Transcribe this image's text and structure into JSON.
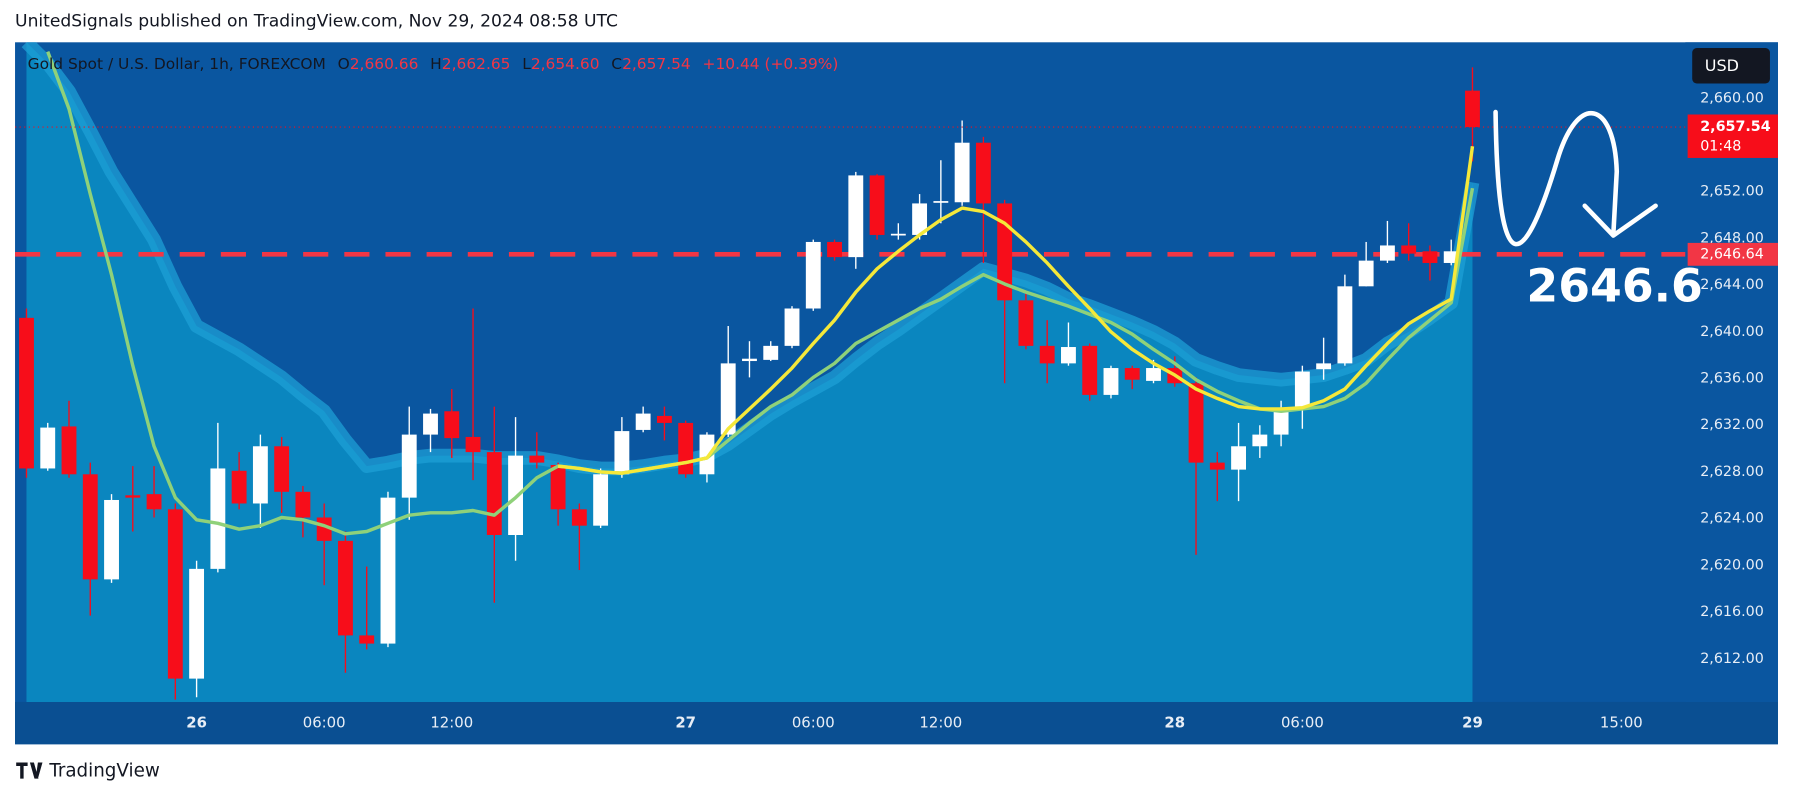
{
  "header": "UnitedSignals published on TradingView.com, Nov 29, 2024 08:58 UTC",
  "footer": "TradingView",
  "chart_data": {
    "type": "candlestick",
    "legend": {
      "symbol": "Gold Spot / U.S. Dollar, 1h, FOREXCOM",
      "o": "O",
      "open": "2,660.66",
      "h": "H",
      "high": "2,662.65",
      "l": "L",
      "low": "2,654.60",
      "c": "C",
      "close": "2,657.54",
      "change": "+10.44 (+0.39%)"
    },
    "currency": "USD",
    "categories": [
      null,
      null,
      null,
      null,
      null,
      null,
      null,
      null,
      "26",
      null,
      null,
      null,
      null,
      null,
      "06:00",
      null,
      null,
      null,
      null,
      null,
      "12:00",
      null,
      null,
      null,
      null,
      null,
      null,
      null,
      null,
      null,
      null,
      "27",
      null,
      null,
      null,
      null,
      null,
      "06:00",
      null,
      null,
      null,
      null,
      null,
      "12:00",
      null,
      null,
      null,
      null,
      null,
      null,
      null,
      null,
      null,
      null,
      "28",
      null,
      null,
      null,
      null,
      null,
      "06:00",
      null,
      null,
      null,
      null,
      null,
      null,
      null,
      "29",
      null,
      null,
      null,
      null,
      null,
      null,
      "15:00",
      null,
      null,
      null
    ],
    "open": [
      2641.2,
      2628.3,
      2631.9,
      2627.8,
      2618.8,
      2626.0,
      2626.1,
      2624.8,
      2610.3,
      2619.7,
      2628.1,
      2625.3,
      2630.2,
      2626.3,
      2624.1,
      2622.1,
      2614.0,
      2613.3,
      2625.8,
      2631.2,
      2633.2,
      2631.0,
      2629.7,
      2622.6,
      2629.4,
      2628.6,
      2624.8,
      2623.4,
      2627.8,
      2631.6,
      2632.8,
      2632.2,
      2627.8,
      2631.2,
      2637.5,
      2637.6,
      2638.8,
      2642.0,
      2647.7,
      2646.4,
      2653.4,
      2648.3,
      2648.3,
      2651.1,
      2651.1,
      2656.2,
      2651.0,
      2642.7,
      2638.8,
      2637.3,
      2638.8,
      2634.6,
      2636.9,
      2635.8,
      2636.9,
      2635.6,
      2628.8,
      2628.2,
      2630.2,
      2631.2,
      2633.5,
      2636.8,
      2637.3,
      2643.9,
      2646.1,
      2647.4,
      2646.9,
      2645.9,
      2660.66,
      null,
      null,
      null,
      null,
      null,
      null,
      null,
      null,
      null,
      null
    ],
    "high": [
      2642.0,
      2632.2,
      2634.1,
      2628.8,
      2626.1,
      2628.5,
      2628.5,
      2625.3,
      2620.4,
      2632.2,
      2629.7,
      2631.2,
      2631.0,
      2626.8,
      2625.3,
      2622.9,
      2619.9,
      2626.3,
      2633.6,
      2633.4,
      2635.1,
      2642.0,
      2633.6,
      2632.7,
      2631.4,
      2628.8,
      2625.3,
      2628.3,
      2632.7,
      2633.6,
      2633.6,
      2632.4,
      2631.4,
      2640.5,
      2639.2,
      2639.2,
      2642.2,
      2647.9,
      2647.9,
      2653.7,
      2653.5,
      2649.3,
      2651.8,
      2654.7,
      2658.1,
      2656.7,
      2651.3,
      2643.4,
      2641.0,
      2640.8,
      2639.0,
      2637.1,
      2637.1,
      2637.6,
      2637.9,
      2636.1,
      2629.7,
      2632.2,
      2632.0,
      2634.1,
      2637.1,
      2639.5,
      2644.9,
      2647.7,
      2649.5,
      2649.3,
      2647.4,
      2647.9,
      2662.65,
      null,
      null,
      null,
      null,
      null,
      null,
      null,
      null,
      null,
      null
    ],
    "low": [
      2627.5,
      2628.1,
      2627.5,
      2615.7,
      2618.5,
      2622.9,
      2624.1,
      2608.5,
      2608.7,
      2619.4,
      2624.8,
      2623.2,
      2624.5,
      2622.4,
      2618.3,
      2610.8,
      2612.8,
      2613.0,
      2623.9,
      2629.7,
      2629.2,
      2627.3,
      2616.8,
      2620.4,
      2628.3,
      2623.4,
      2619.6,
      2623.2,
      2627.5,
      2631.4,
      2630.7,
      2627.5,
      2627.1,
      2631.0,
      2636.1,
      2637.5,
      2638.6,
      2641.8,
      2646.1,
      2645.4,
      2647.9,
      2647.9,
      2647.9,
      2649.3,
      2650.8,
      2645.9,
      2635.6,
      2638.5,
      2635.6,
      2637.1,
      2634.1,
      2634.3,
      2635.1,
      2635.6,
      2635.3,
      2620.9,
      2625.5,
      2625.5,
      2629.2,
      2630.2,
      2631.7,
      2635.9,
      2637.1,
      2643.9,
      2645.9,
      2646.1,
      2644.4,
      2645.7,
      2654.6,
      null,
      null,
      null,
      null,
      null,
      null,
      null,
      null,
      null,
      null
    ],
    "close": [
      2628.3,
      2631.8,
      2627.8,
      2618.8,
      2625.6,
      2625.8,
      2624.8,
      2610.3,
      2619.7,
      2628.3,
      2625.3,
      2630.2,
      2626.3,
      2624.1,
      2622.1,
      2614.0,
      2613.3,
      2625.8,
      2631.2,
      2633.0,
      2630.9,
      2629.7,
      2622.6,
      2629.4,
      2628.8,
      2624.8,
      2623.4,
      2627.8,
      2631.5,
      2633.0,
      2632.2,
      2627.8,
      2631.2,
      2637.3,
      2637.7,
      2638.8,
      2642.0,
      2647.7,
      2646.4,
      2653.4,
      2648.3,
      2648.4,
      2651.0,
      2651.2,
      2656.2,
      2651.0,
      2642.7,
      2638.8,
      2637.3,
      2638.7,
      2634.6,
      2636.9,
      2635.9,
      2636.9,
      2635.6,
      2628.8,
      2628.2,
      2630.2,
      2631.2,
      2633.5,
      2636.6,
      2637.3,
      2643.9,
      2646.1,
      2647.4,
      2646.7,
      2645.9,
      2646.9,
      2657.54,
      null,
      null,
      null,
      null,
      null,
      null,
      null,
      null,
      null,
      null
    ],
    "up_color": "#ffffff",
    "down_color": "#f70d1a",
    "series": [
      {
        "type": "area",
        "color": "#1e9fd6",
        "values": [
          2664.8,
          2663.0,
          2660.6,
          2657.2,
          2653.7,
          2650.8,
          2647.9,
          2643.9,
          2640.5,
          2639.5,
          2638.5,
          2637.3,
          2636.1,
          2634.6,
          2633.2,
          2630.7,
          2628.5,
          2628.8,
          2629.2,
          2629.4,
          2629.4,
          2629.4,
          2629.2,
          2629.2,
          2629.2,
          2628.9,
          2628.5,
          2628.3,
          2628.3,
          2628.5,
          2628.8,
          2629.0,
          2629.4,
          2630.4,
          2631.7,
          2633.0,
          2634.1,
          2635.1,
          2636.1,
          2637.6,
          2639.0,
          2640.2,
          2641.5,
          2642.8,
          2644.1,
          2645.4,
          2644.9,
          2644.4,
          2643.7,
          2642.8,
          2642.2,
          2641.5,
          2640.8,
          2640.0,
          2639.0,
          2637.6,
          2636.9,
          2636.3,
          2636.1,
          2635.9,
          2636.1,
          2636.3,
          2636.9,
          2637.6,
          2639.0,
          2640.0,
          2641.2,
          2642.5,
          2652.8,
          null,
          null,
          null,
          null,
          null,
          null,
          null,
          null,
          null,
          null
        ]
      },
      {
        "type": "line",
        "color": "#8fd17a",
        "values": [
          null,
          2664.0,
          2659.1,
          2651.8,
          2644.9,
          2637.1,
          2630.2,
          2625.8,
          2623.9,
          2623.6,
          2623.1,
          2623.4,
          2624.1,
          2623.9,
          2623.4,
          2622.7,
          2622.9,
          2623.6,
          2624.3,
          2624.5,
          2624.5,
          2624.7,
          2624.3,
          2625.8,
          2627.5,
          2628.5,
          2628.3,
          2628.0,
          2627.9,
          2628.2,
          2628.5,
          2628.8,
          2629.2,
          2630.7,
          2632.2,
          2633.6,
          2634.6,
          2636.1,
          2637.3,
          2639.0,
          2640.0,
          2641.0,
          2642.0,
          2642.8,
          2643.9,
          2644.9,
          2644.1,
          2643.4,
          2642.8,
          2642.2,
          2641.5,
          2640.8,
          2639.8,
          2638.5,
          2637.3,
          2635.9,
          2634.9,
          2634.1,
          2633.4,
          2633.2,
          2633.4,
          2633.6,
          2634.3,
          2635.6,
          2637.6,
          2639.5,
          2641.0,
          2642.5,
          2652.3,
          null,
          null,
          null,
          null,
          null,
          null,
          null,
          null,
          null,
          null
        ]
      },
      {
        "type": "line",
        "color": "#f5e83a",
        "values": [
          null,
          null,
          null,
          null,
          null,
          null,
          null,
          null,
          null,
          null,
          null,
          null,
          null,
          null,
          null,
          null,
          null,
          null,
          null,
          null,
          null,
          null,
          null,
          null,
          null,
          2628.5,
          2628.3,
          2628.0,
          2627.9,
          2628.2,
          2628.5,
          2628.8,
          2629.2,
          2631.7,
          2633.4,
          2635.1,
          2636.9,
          2639.0,
          2641.0,
          2643.4,
          2645.4,
          2646.9,
          2648.3,
          2649.6,
          2650.6,
          2650.3,
          2649.3,
          2647.7,
          2645.9,
          2643.9,
          2642.0,
          2640.0,
          2638.5,
          2637.3,
          2636.3,
          2635.1,
          2634.3,
          2633.6,
          2633.4,
          2633.4,
          2633.5,
          2634.1,
          2635.1,
          2637.1,
          2639.0,
          2640.7,
          2641.8,
          2642.8,
          2655.9,
          null,
          null,
          null,
          null,
          null,
          null,
          null,
          null,
          null,
          null
        ]
      }
    ],
    "ylim": [
      2608.3,
      2664.8
    ],
    "yticks": [
      {
        "value": 2612,
        "label": "2,612.00"
      },
      {
        "value": 2616,
        "label": "2,616.00"
      },
      {
        "value": 2620,
        "label": "2,620.00"
      },
      {
        "value": 2624,
        "label": "2,624.00"
      },
      {
        "value": 2628,
        "label": "2,628.00"
      },
      {
        "value": 2632,
        "label": "2,632.00"
      },
      {
        "value": 2636,
        "label": "2,636.00"
      },
      {
        "value": 2640,
        "label": "2,640.00"
      },
      {
        "value": 2644,
        "label": "2,644.00"
      },
      {
        "value": 2648,
        "label": "2,648.00"
      },
      {
        "value": 2652,
        "label": "2,652.00"
      },
      {
        "value": 2656,
        "label": "2,656.00"
      },
      {
        "value": 2660,
        "label": "2,660.00"
      }
    ],
    "grid": false,
    "current_price": {
      "value": 2657.54,
      "label": "2,657.54",
      "countdown": "01:48",
      "color": "#f70d1a"
    },
    "level": {
      "value": 2646.64,
      "label": "2,646.64",
      "color": "#f23645"
    },
    "annotation": "2646.6"
  }
}
